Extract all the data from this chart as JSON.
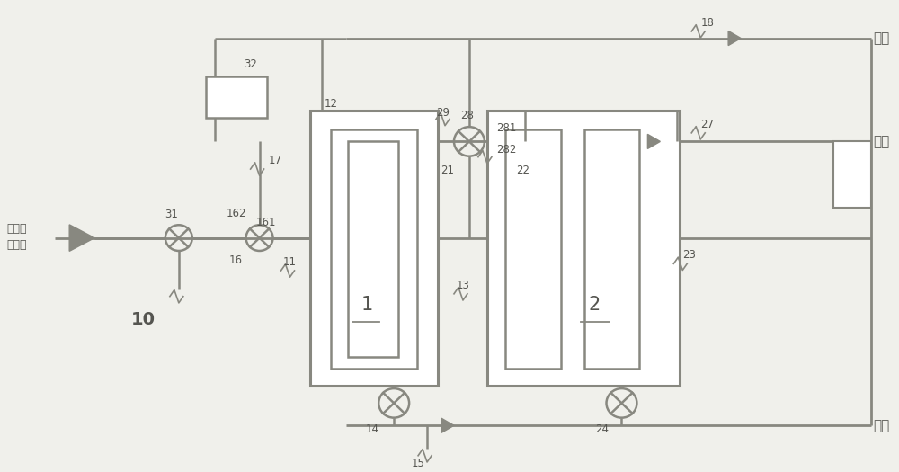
{
  "bg_color": "#f0f0eb",
  "line_color": "#888880",
  "labels": {
    "jingshui": "净水",
    "ruanshui": "软水",
    "feishui": "废水",
    "ziyuanshui": "自来水",
    "jinshuikou": "进水口",
    "num_10": "10",
    "num_1": "1",
    "num_2": "2",
    "num_11": "11",
    "num_12": "12",
    "num_13": "13",
    "num_14": "14",
    "num_15": "15",
    "num_16": "16",
    "num_161": "161",
    "num_162": "162",
    "num_17": "17",
    "num_18": "18",
    "num_21": "21",
    "num_22": "22",
    "num_23": "23",
    "num_24": "24",
    "num_27": "27",
    "num_28": "28",
    "num_281": "281",
    "num_282": "282",
    "num_29": "29",
    "num_31": "31",
    "num_32": "32"
  }
}
